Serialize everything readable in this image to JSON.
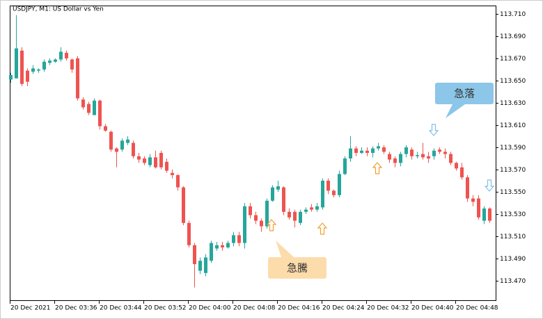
{
  "chart_data": {
    "type": "candlestick",
    "title": "USDJPY, M1:  US Dollar vs Yen",
    "categories": [
      "20 Dec 2021",
      null,
      null,
      null,
      null,
      null,
      null,
      null,
      "20 Dec 03:36",
      null,
      null,
      null,
      null,
      null,
      null,
      null,
      "20 Dec 03:44",
      null,
      null,
      null,
      null,
      null,
      null,
      null,
      "20 Dec 03:52",
      null,
      null,
      null,
      null,
      null,
      null,
      null,
      "20 Dec 04:00",
      null,
      null,
      null,
      null,
      null,
      null,
      null,
      "20 Dec 04:08",
      null,
      null,
      null,
      null,
      null,
      null,
      null,
      "20 Dec 04:16",
      null,
      null,
      null,
      null,
      null,
      null,
      null,
      "20 Dec 04:24",
      null,
      null,
      null,
      null,
      null,
      null,
      null,
      "20 Dec 04:32",
      null,
      null,
      null,
      null,
      null,
      null,
      null,
      "20 Dec 04:40",
      null,
      null,
      null,
      null,
      null,
      null,
      null,
      "20 Dec 04:48",
      null,
      null,
      null,
      null,
      null,
      null
    ],
    "open": [
      113.651,
      113.652,
      113.677,
      113.659,
      113.658,
      113.659,
      113.66,
      113.666,
      113.667,
      113.669,
      113.675,
      113.669,
      113.67,
      113.633,
      113.629,
      113.619,
      113.632,
      113.609,
      113.604,
      113.589,
      113.588,
      113.594,
      113.594,
      113.582,
      113.58,
      113.574,
      113.581,
      113.585,
      113.577,
      113.567,
      113.565,
      113.554,
      113.522,
      113.502,
      113.479,
      113.477,
      113.488,
      113.499,
      113.502,
      113.5,
      113.504,
      113.511,
      113.504,
      113.537,
      113.529,
      113.524,
      113.519,
      113.542,
      113.552,
      113.554,
      113.532,
      113.532,
      113.522,
      113.532,
      113.536,
      113.534,
      113.536,
      113.56,
      113.551,
      113.547,
      113.566,
      113.58,
      113.589,
      113.585,
      113.587,
      113.585,
      113.589,
      113.59,
      113.584,
      113.58,
      113.576,
      113.584,
      113.588,
      113.582,
      113.584,
      113.582,
      113.582,
      113.588,
      113.586,
      113.584,
      113.576,
      113.572,
      113.563,
      113.544,
      113.544,
      113.524,
      113.535
    ],
    "high": [
      113.657,
      113.709,
      113.68,
      113.661,
      113.664,
      113.661,
      113.669,
      113.67,
      113.67,
      113.68,
      113.677,
      113.67,
      113.672,
      113.635,
      113.631,
      113.634,
      113.633,
      113.611,
      113.605,
      113.59,
      113.598,
      113.6,
      113.596,
      113.585,
      113.582,
      113.584,
      113.587,
      113.587,
      113.58,
      113.57,
      113.566,
      113.555,
      113.524,
      113.504,
      113.491,
      113.494,
      113.506,
      113.505,
      113.505,
      113.506,
      113.514,
      113.514,
      113.54,
      113.54,
      113.532,
      113.526,
      113.544,
      113.556,
      113.56,
      113.555,
      113.535,
      113.534,
      113.534,
      113.536,
      113.539,
      113.54,
      113.562,
      113.562,
      113.552,
      113.569,
      113.582,
      113.6,
      113.591,
      113.59,
      113.59,
      113.591,
      113.594,
      113.592,
      113.586,
      113.582,
      113.586,
      113.592,
      113.59,
      113.586,
      113.594,
      113.586,
      113.589,
      113.59,
      113.589,
      113.586,
      113.577,
      113.576,
      113.565,
      113.547,
      113.547,
      113.537,
      113.536
    ],
    "low": [
      113.648,
      113.652,
      113.645,
      113.645,
      113.656,
      113.657,
      113.658,
      113.664,
      113.666,
      113.667,
      113.668,
      113.657,
      113.632,
      113.624,
      113.619,
      113.619,
      113.606,
      113.604,
      113.586,
      113.572,
      113.586,
      113.592,
      113.58,
      113.576,
      113.574,
      113.572,
      113.571,
      113.57,
      113.567,
      113.562,
      113.551,
      113.52,
      113.5,
      113.464,
      113.476,
      113.474,
      113.486,
      113.497,
      113.497,
      113.499,
      113.501,
      113.501,
      113.499,
      113.526,
      113.521,
      113.514,
      113.517,
      113.541,
      113.55,
      113.529,
      113.525,
      113.518,
      113.52,
      113.53,
      113.532,
      113.532,
      113.534,
      113.548,
      113.545,
      113.545,
      113.565,
      113.577,
      113.582,
      113.584,
      113.582,
      113.581,
      113.587,
      113.584,
      113.576,
      113.572,
      113.573,
      113.581,
      113.579,
      113.58,
      113.579,
      113.576,
      113.579,
      113.584,
      113.58,
      113.574,
      113.569,
      113.561,
      113.541,
      113.537,
      113.525,
      113.521,
      113.522
    ],
    "close": [
      113.655,
      113.679,
      113.647,
      113.649,
      113.661,
      113.66,
      113.667,
      113.668,
      113.669,
      113.676,
      113.67,
      113.66,
      113.634,
      113.626,
      113.621,
      113.632,
      113.609,
      113.605,
      113.588,
      113.586,
      113.596,
      113.597,
      113.582,
      113.579,
      113.576,
      113.581,
      113.572,
      113.572,
      113.569,
      113.565,
      113.554,
      113.522,
      113.502,
      113.485,
      113.488,
      113.491,
      113.504,
      113.502,
      113.5,
      113.504,
      113.511,
      113.504,
      113.537,
      113.529,
      113.524,
      113.519,
      113.542,
      113.554,
      113.555,
      113.532,
      113.527,
      113.524,
      113.532,
      113.534,
      113.534,
      113.537,
      113.56,
      113.551,
      113.547,
      113.566,
      113.58,
      113.589,
      113.585,
      113.587,
      113.585,
      113.589,
      113.591,
      113.586,
      113.579,
      113.576,
      113.584,
      113.59,
      113.582,
      113.583,
      113.581,
      113.58,
      113.587,
      113.586,
      113.584,
      113.576,
      113.571,
      113.563,
      113.544,
      113.541,
      113.527,
      113.535,
      113.524
    ],
    "up_color": "#26a69a",
    "down_color": "#ef5350",
    "ylim": [
      113.4525,
      113.7175
    ],
    "yticks": [
      {
        "value": 113.47,
        "label": "113.470"
      },
      {
        "value": 113.49,
        "label": "113.490"
      },
      {
        "value": 113.51,
        "label": "113.510"
      },
      {
        "value": 113.53,
        "label": "113.530"
      },
      {
        "value": 113.55,
        "label": "113.550"
      },
      {
        "value": 113.57,
        "label": "113.570"
      },
      {
        "value": 113.59,
        "label": "113.590"
      },
      {
        "value": 113.61,
        "label": "113.610"
      },
      {
        "value": 113.63,
        "label": "113.630"
      },
      {
        "value": 113.65,
        "label": "113.650"
      },
      {
        "value": 113.67,
        "label": "113.670"
      },
      {
        "value": 113.69,
        "label": "113.690"
      },
      {
        "value": 113.71,
        "label": "113.710"
      }
    ],
    "annotations": [
      "急落",
      "急騰"
    ]
  }
}
